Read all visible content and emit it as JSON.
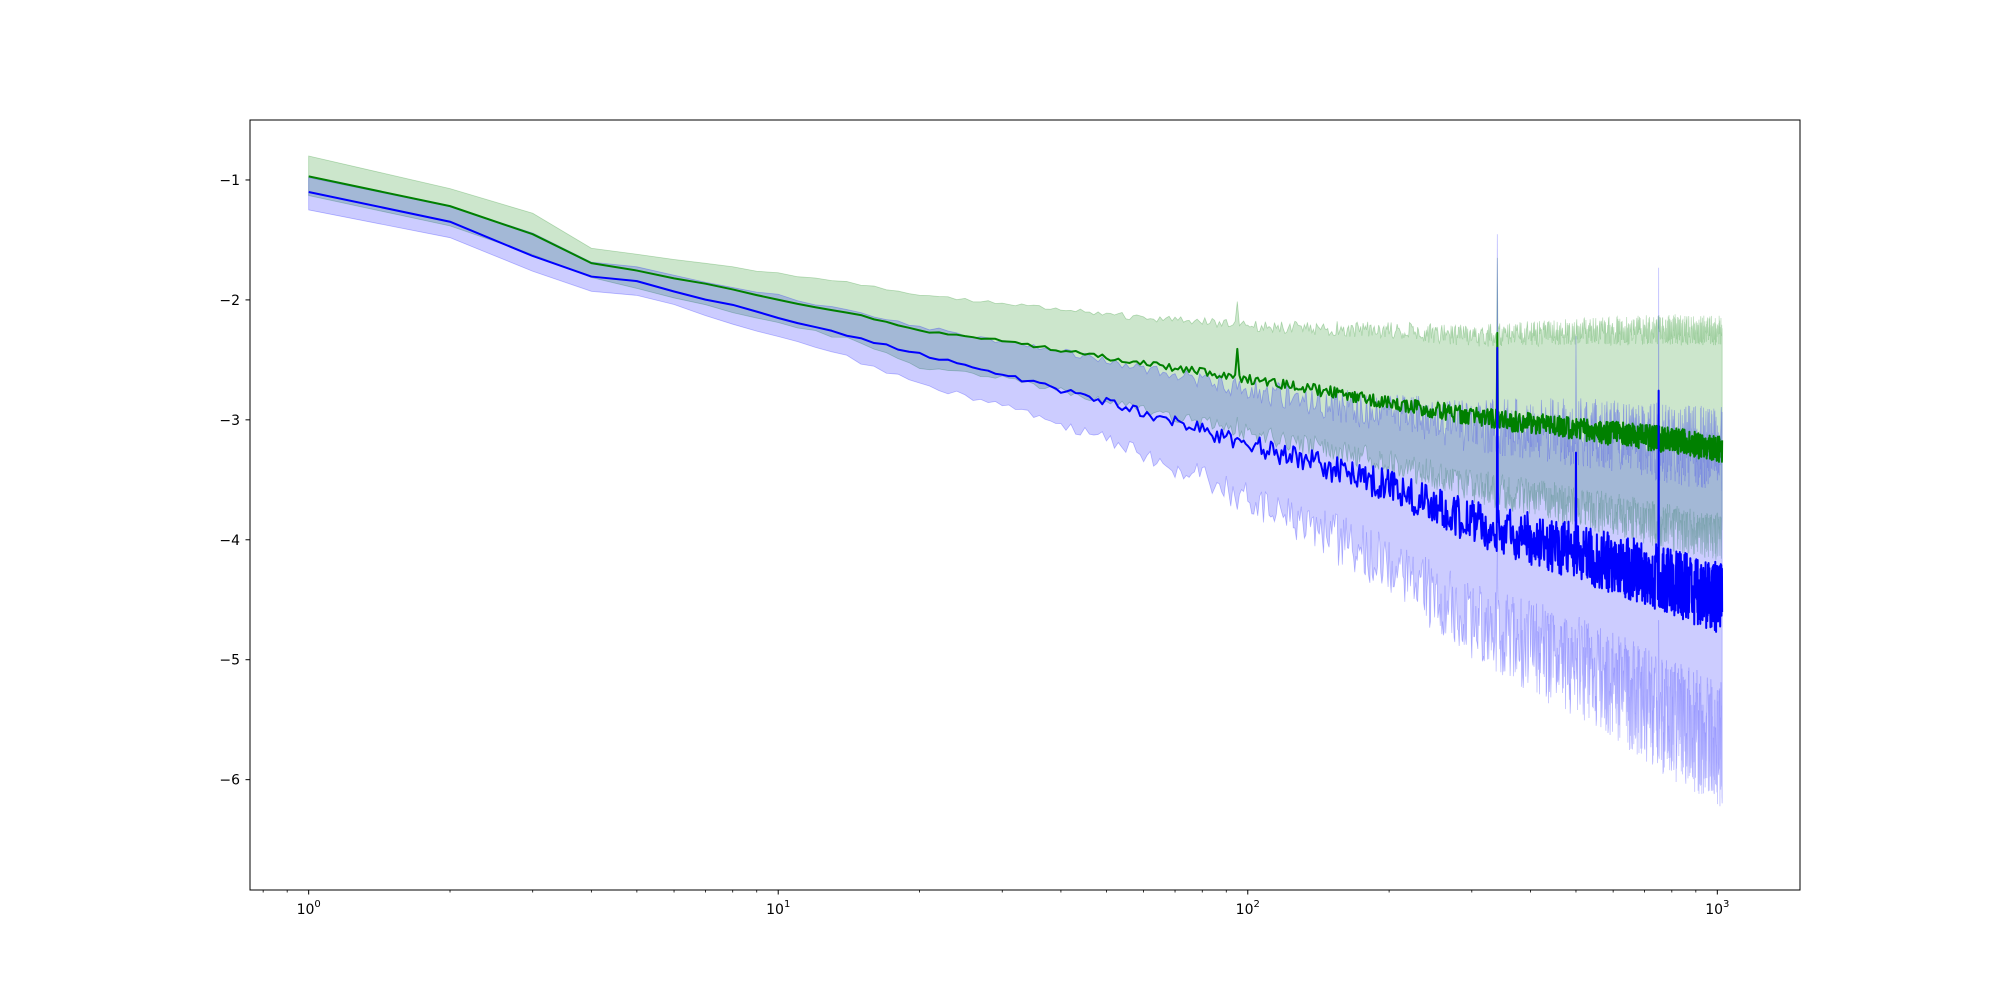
{
  "chart_data": {
    "type": "line",
    "title": "",
    "xlabel": "",
    "ylabel": "",
    "x_scale": "log",
    "xlim": [
      0.75,
      1500
    ],
    "ylim": [
      -6.92,
      -0.5
    ],
    "grid": false,
    "legend": "none",
    "x_ticks": [
      {
        "value": 1,
        "base": "10",
        "exp": "0"
      },
      {
        "value": 10,
        "base": "10",
        "exp": "1"
      },
      {
        "value": 100,
        "base": "10",
        "exp": "2"
      },
      {
        "value": 1000,
        "base": "10",
        "exp": "3"
      }
    ],
    "y_ticks": [
      {
        "value": -1,
        "label": "−1"
      },
      {
        "value": -2,
        "label": "−2"
      },
      {
        "value": -3,
        "label": "−3"
      },
      {
        "value": -4,
        "label": "−4"
      },
      {
        "value": -5,
        "label": "−5"
      },
      {
        "value": -6,
        "label": "−6"
      }
    ],
    "x_range": [
      1,
      1024
    ],
    "series": [
      {
        "color": "#008000",
        "band_color": "#008000",
        "band_opacity": 0.2,
        "mean_anchors": [
          [
            1,
            -0.97
          ],
          [
            2,
            -1.22
          ],
          [
            3,
            -1.45
          ],
          [
            4,
            -1.69
          ],
          [
            5,
            -1.76
          ],
          [
            7,
            -1.87
          ],
          [
            10,
            -2.0
          ],
          [
            15,
            -2.13
          ],
          [
            20,
            -2.26
          ],
          [
            30,
            -2.34
          ],
          [
            50,
            -2.48
          ],
          [
            100,
            -2.66
          ],
          [
            200,
            -2.85
          ],
          [
            300,
            -2.97
          ],
          [
            500,
            -3.08
          ],
          [
            800,
            -3.17
          ],
          [
            1024,
            -3.25
          ]
        ],
        "upper_anchors": [
          [
            1,
            -0.8
          ],
          [
            2,
            -1.07
          ],
          [
            3,
            -1.28
          ],
          [
            4,
            -1.57
          ],
          [
            5,
            -1.62
          ],
          [
            7,
            -1.7
          ],
          [
            10,
            -1.78
          ],
          [
            15,
            -1.87
          ],
          [
            20,
            -1.96
          ],
          [
            30,
            -2.03
          ],
          [
            50,
            -2.12
          ],
          [
            100,
            -2.22
          ],
          [
            200,
            -2.25
          ],
          [
            300,
            -2.3
          ],
          [
            500,
            -2.27
          ],
          [
            800,
            -2.25
          ],
          [
            1024,
            -2.26
          ]
        ],
        "lower_anchors": [
          [
            1,
            -1.13
          ],
          [
            2,
            -1.38
          ],
          [
            3,
            -1.62
          ],
          [
            4,
            -1.81
          ],
          [
            5,
            -1.9
          ],
          [
            7,
            -2.04
          ],
          [
            10,
            -2.2
          ],
          [
            15,
            -2.35
          ],
          [
            20,
            -2.56
          ],
          [
            30,
            -2.65
          ],
          [
            50,
            -2.84
          ],
          [
            100,
            -3.1
          ],
          [
            200,
            -3.35
          ],
          [
            300,
            -3.55
          ],
          [
            500,
            -3.72
          ],
          [
            800,
            -3.9
          ],
          [
            1024,
            -3.98
          ]
        ],
        "noise_anchors": [
          [
            1,
            0.0
          ],
          [
            30,
            0.01
          ],
          [
            60,
            0.025
          ],
          [
            100,
            0.04
          ],
          [
            200,
            0.06
          ],
          [
            400,
            0.09
          ],
          [
            800,
            0.11
          ],
          [
            1024,
            0.11
          ]
        ],
        "spikes": [
          [
            95,
            0.22
          ],
          [
            340,
            0.7
          ]
        ]
      },
      {
        "color": "#0000ff",
        "band_color": "#0000ff",
        "band_opacity": 0.2,
        "mean_anchors": [
          [
            1,
            -1.1
          ],
          [
            2,
            -1.35
          ],
          [
            3,
            -1.63
          ],
          [
            4,
            -1.8
          ],
          [
            5,
            -1.85
          ],
          [
            7,
            -1.99
          ],
          [
            10,
            -2.15
          ],
          [
            15,
            -2.33
          ],
          [
            20,
            -2.45
          ],
          [
            30,
            -2.62
          ],
          [
            50,
            -2.85
          ],
          [
            100,
            -3.2
          ],
          [
            200,
            -3.55
          ],
          [
            300,
            -3.85
          ],
          [
            500,
            -4.1
          ],
          [
            800,
            -4.35
          ],
          [
            1024,
            -4.5
          ]
        ],
        "upper_anchors": [
          [
            1,
            -0.98
          ],
          [
            2,
            -1.22
          ],
          [
            3,
            -1.44
          ],
          [
            4,
            -1.69
          ],
          [
            5,
            -1.73
          ],
          [
            7,
            -1.85
          ],
          [
            10,
            -1.96
          ],
          [
            15,
            -2.12
          ],
          [
            20,
            -2.22
          ],
          [
            30,
            -2.35
          ],
          [
            50,
            -2.5
          ],
          [
            100,
            -2.75
          ],
          [
            200,
            -2.95
          ],
          [
            300,
            -3.05
          ],
          [
            500,
            -3.1
          ],
          [
            800,
            -3.2
          ],
          [
            1024,
            -3.25
          ]
        ],
        "lower_anchors": [
          [
            1,
            -1.25
          ],
          [
            2,
            -1.48
          ],
          [
            3,
            -1.76
          ],
          [
            4,
            -1.93
          ],
          [
            5,
            -1.97
          ],
          [
            7,
            -2.12
          ],
          [
            10,
            -2.3
          ],
          [
            15,
            -2.52
          ],
          [
            20,
            -2.7
          ],
          [
            30,
            -2.88
          ],
          [
            50,
            -3.15
          ],
          [
            100,
            -3.65
          ],
          [
            200,
            -4.2
          ],
          [
            300,
            -4.7
          ],
          [
            500,
            -5.05
          ],
          [
            800,
            -5.5
          ],
          [
            1024,
            -5.7
          ]
        ],
        "noise_anchors": [
          [
            1,
            0.0
          ],
          [
            30,
            0.015
          ],
          [
            60,
            0.04
          ],
          [
            100,
            0.08
          ],
          [
            200,
            0.14
          ],
          [
            400,
            0.22
          ],
          [
            800,
            0.28
          ],
          [
            1024,
            0.3
          ]
        ],
        "spikes": [
          [
            340,
            1.6
          ],
          [
            750,
            1.3
          ],
          [
            500,
            0.7
          ]
        ]
      }
    ]
  }
}
